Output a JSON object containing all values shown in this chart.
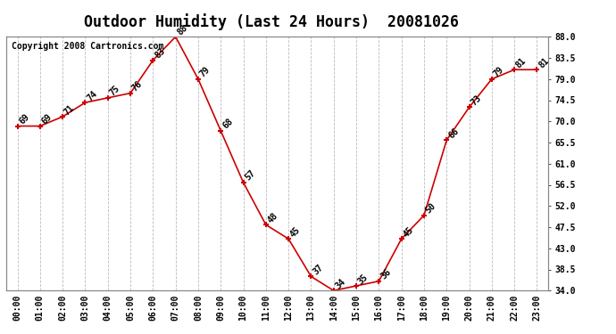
{
  "title": "Outdoor Humidity (Last 24 Hours)  20081026",
  "copyright": "Copyright 2008 Cartronics.com",
  "hours": [
    "00:00",
    "01:00",
    "02:00",
    "03:00",
    "04:00",
    "05:00",
    "06:00",
    "07:00",
    "08:00",
    "09:00",
    "10:00",
    "11:00",
    "12:00",
    "13:00",
    "14:00",
    "15:00",
    "16:00",
    "17:00",
    "18:00",
    "19:00",
    "20:00",
    "21:00",
    "22:00",
    "23:00"
  ],
  "values": [
    69,
    69,
    71,
    74,
    75,
    76,
    83,
    88,
    79,
    68,
    57,
    48,
    45,
    37,
    34,
    35,
    36,
    45,
    50,
    66,
    73,
    79,
    81,
    81
  ],
  "line_color": "#cc0000",
  "marker": "+",
  "bg_color": "#ffffff",
  "grid_color": "#bbbbbb",
  "ylim": [
    34.0,
    88.0
  ],
  "yticks_right": [
    34.0,
    38.5,
    43.0,
    47.5,
    52.0,
    56.5,
    61.0,
    65.5,
    70.0,
    74.5,
    79.0,
    83.5,
    88.0
  ],
  "title_fontsize": 12,
  "label_fontsize": 7,
  "annotation_fontsize": 7,
  "copyright_fontsize": 7
}
